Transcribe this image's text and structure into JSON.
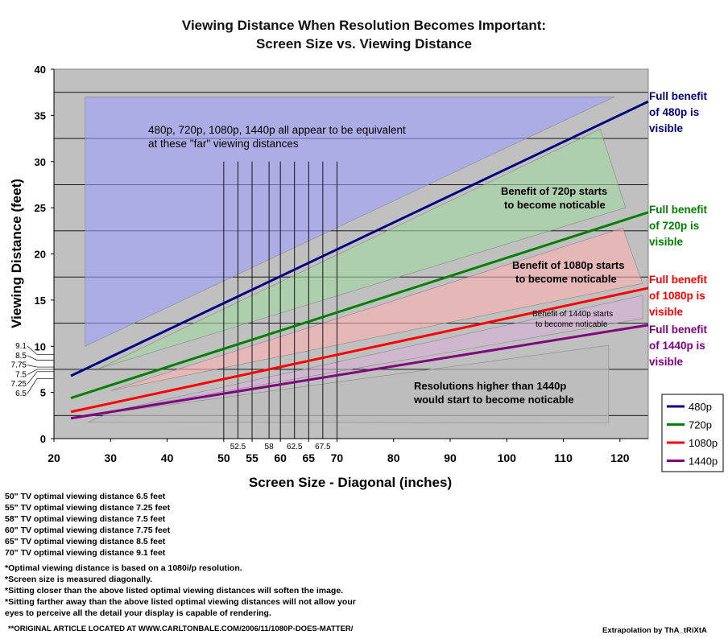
{
  "chart_data": {
    "type": "line",
    "title": "Viewing Distance When Resolution Becomes Important:",
    "subtitle": "Screen Size vs. Viewing Distance",
    "xlabel": "Screen Size - Diagonal (inches)",
    "ylabel": "Viewing Distance (feet)",
    "xlim": [
      20,
      125
    ],
    "ylim": [
      0,
      40
    ],
    "x_ticks": [
      20,
      30,
      40,
      50,
      55,
      60,
      65,
      70,
      80,
      90,
      100,
      110,
      120
    ],
    "y_ticks": [
      0,
      5,
      10,
      15,
      20,
      25,
      30,
      35,
      40
    ],
    "y_extra_ticks": [
      "6.5",
      "7.25",
      "7.5",
      "7.75",
      "8.5",
      "9.1"
    ],
    "x_extra_ticks": [
      "52.5",
      "58",
      "62.5",
      "67.5"
    ],
    "legend_position": "bottom-right",
    "series": [
      {
        "name": "480p",
        "color": "#000080",
        "x": [
          23,
          125
        ],
        "y": [
          6.8,
          36.5
        ]
      },
      {
        "name": "720p",
        "color": "#008000",
        "x": [
          23,
          125
        ],
        "y": [
          4.4,
          24.5
        ]
      },
      {
        "name": "1080p",
        "color": "#ff0000",
        "x": [
          23,
          125
        ],
        "y": [
          2.9,
          16.3
        ]
      },
      {
        "name": "1440p",
        "color": "#800080",
        "x": [
          23,
          125
        ],
        "y": [
          2.2,
          12.3
        ]
      }
    ],
    "annotations": [
      {
        "line1": "480p, 720p, 1080p, 1440p all appear to be equivalent",
        "line2": "at these \"far\" viewing distances"
      },
      {
        "line1": "Benefit of 720p starts",
        "line2": "to become noticable"
      },
      {
        "line1": "Benefit of 1080p starts",
        "line2": "to become noticable"
      },
      {
        "line1": "Benefit of 1440p starts",
        "line2": "to become noticable"
      },
      {
        "line1": "Resolutions higher than 1440p",
        "line2": "would start to become noticable"
      }
    ],
    "side_labels": [
      {
        "lines": [
          "Full benefit",
          "of 480p is",
          "visible"
        ],
        "color": "#000080"
      },
      {
        "lines": [
          "Full benefit",
          "of 720p is",
          "visible"
        ],
        "color": "#008000"
      },
      {
        "lines": [
          "Full benefit",
          "of 1080p is",
          "visible"
        ],
        "color": "#ff0000"
      },
      {
        "lines": [
          "Full benefit",
          "of 1440p is",
          "visible"
        ],
        "color": "#800080"
      }
    ]
  },
  "notes": {
    "optimal": [
      "50\" TV optimal viewing distance 6.5 feet",
      "55\" TV optimal viewing distance 7.25 feet",
      "58\" TV optimal viewing distance 7.5 feet",
      "60\" TV optimal viewing distance 7.75 feet",
      "65\" TV optimal viewing distance 8.5 feet",
      "70\" TV optimal viewing distance 9.1 feet"
    ],
    "footnotes": [
      "*Optimal viewing distance is based on a 1080i/p resolution.",
      "*Screen size is measured diagonally.",
      "*Sitting closer than the above listed optimal viewing distances will soften the image.",
      "*Sitting farther away than the above listed optimal viewing distances will not allow your",
      "eyes to perceive all the detail your display is capable of rendering."
    ],
    "source": "**ORIGINAL ARTICLE LOCATED AT WWW.CARLTONBALE.COM/2006/11/1080P-DOES-MATTER/",
    "credit": "Extrapolation by ThA_tRiXtA"
  }
}
